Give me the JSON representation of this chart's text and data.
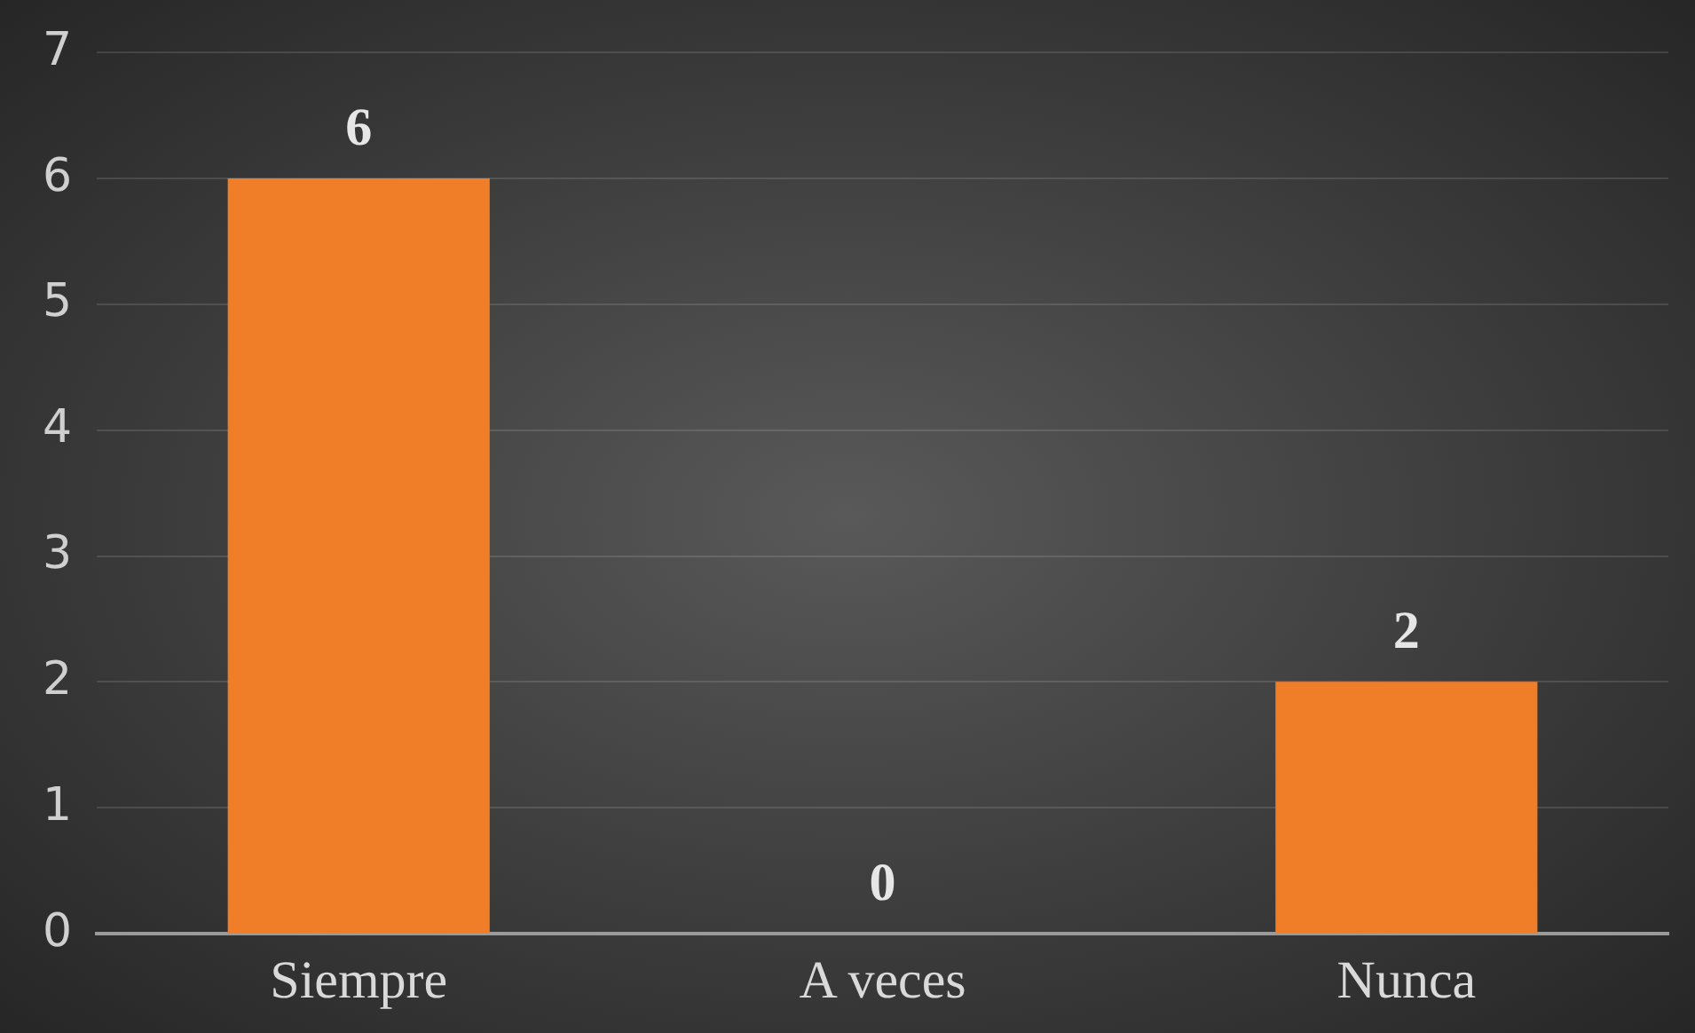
{
  "chart_data": {
    "type": "bar",
    "categories": [
      "Siempre",
      "A veces",
      "Nunca"
    ],
    "values": [
      6,
      0,
      2
    ],
    "color": "#f07d28",
    "ylim": [
      0,
      7
    ],
    "yticks": [
      0,
      1,
      2,
      3,
      4,
      5,
      6,
      7
    ],
    "grid": "y",
    "data_labels": true
  }
}
